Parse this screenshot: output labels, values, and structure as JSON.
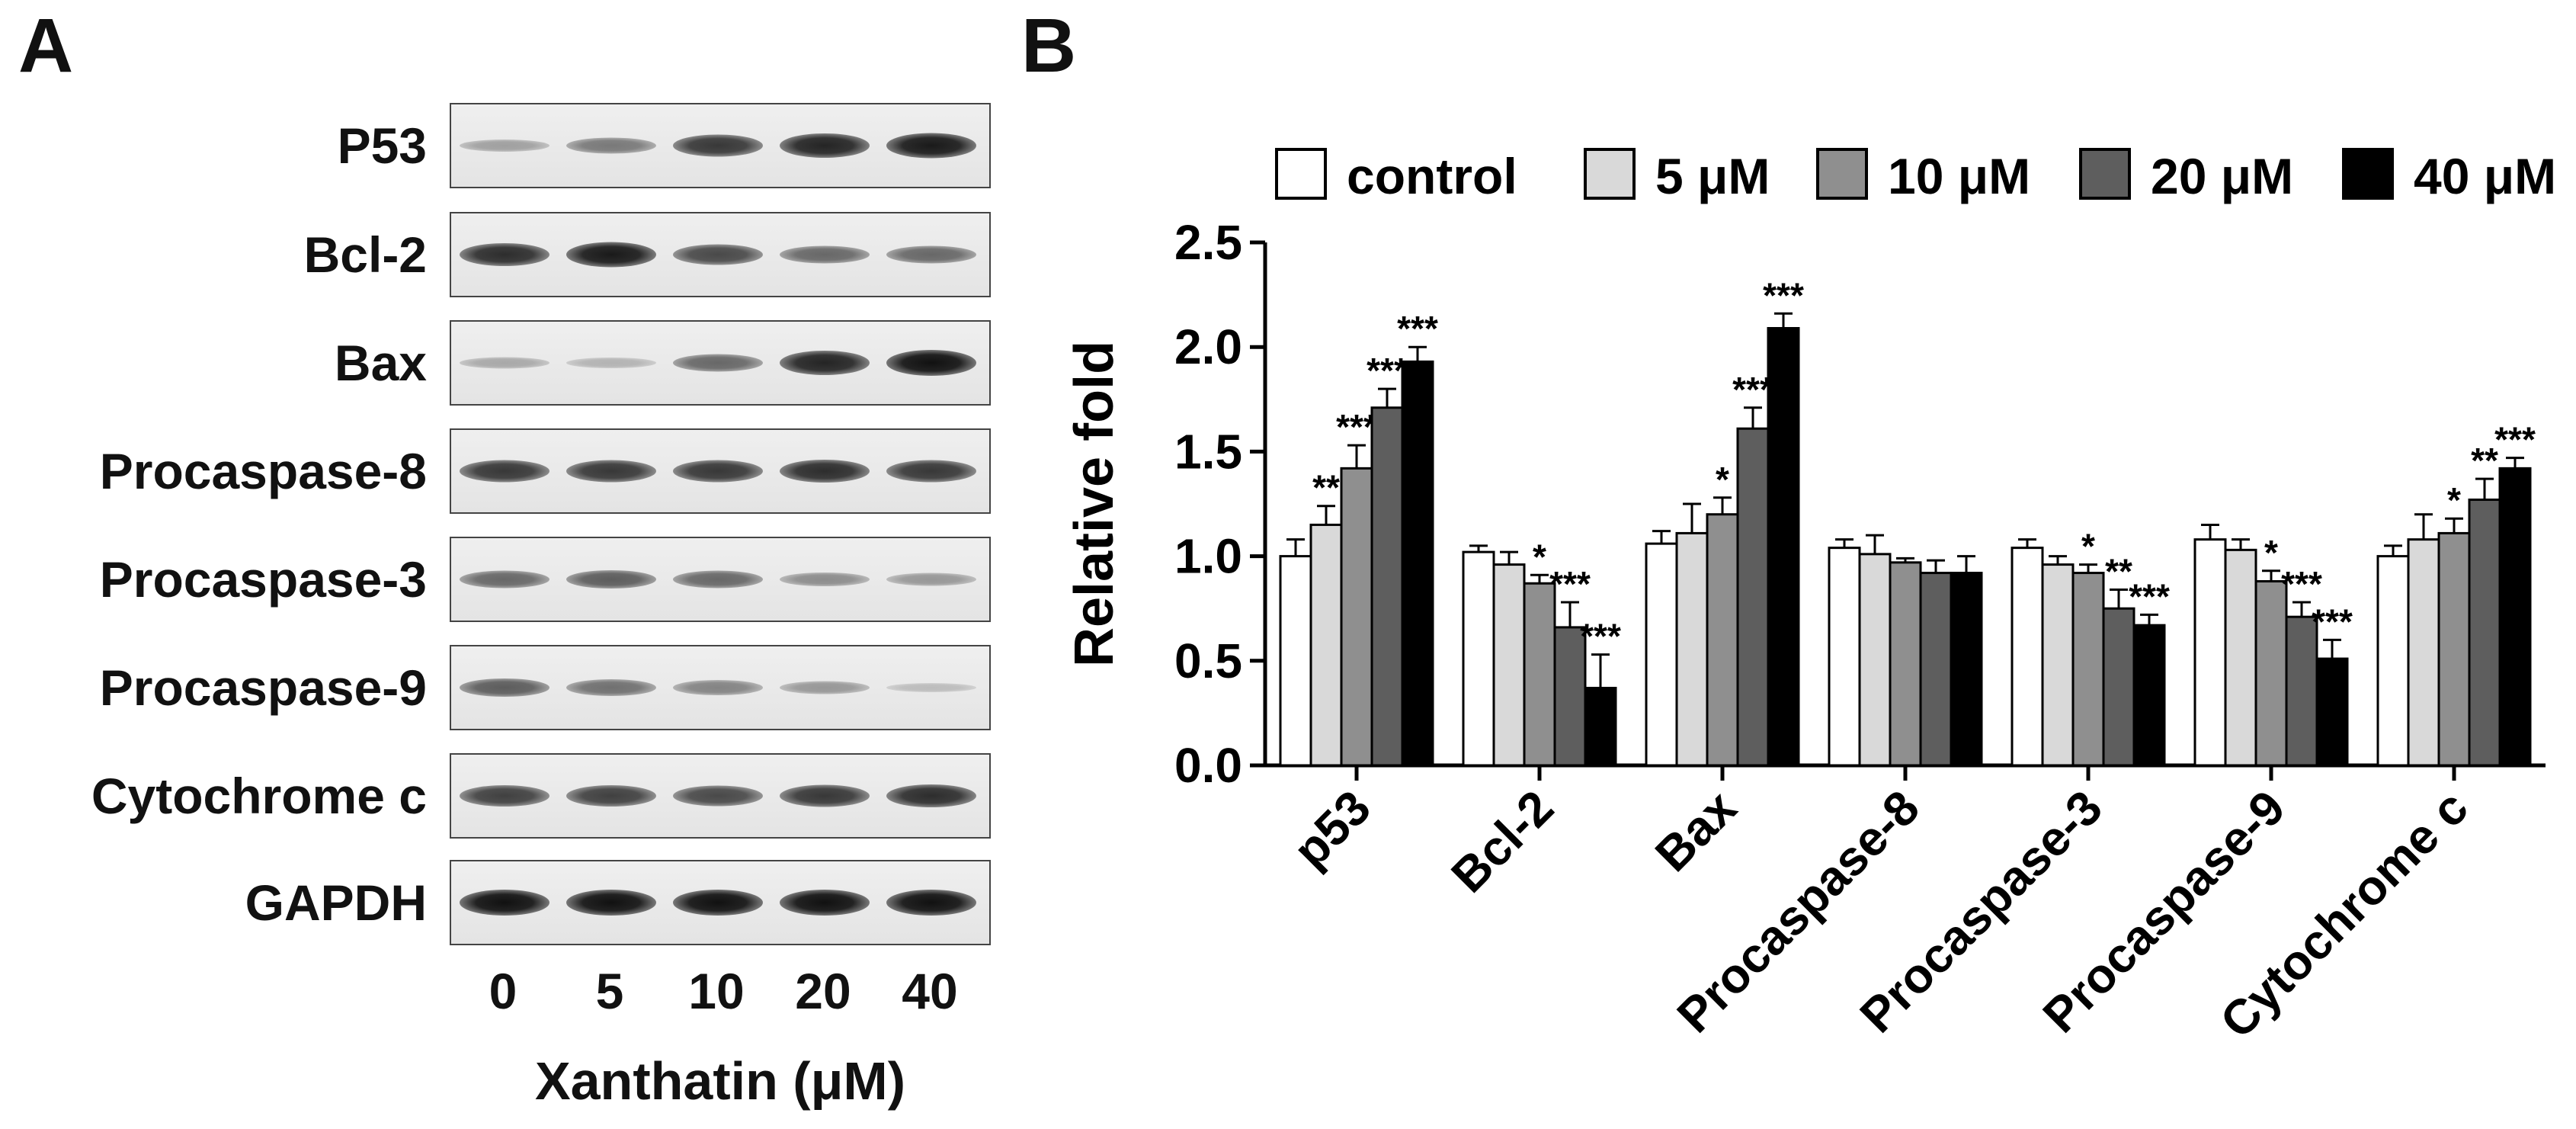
{
  "panels": {
    "a": "A",
    "b": "B"
  },
  "blot": {
    "proteins": [
      {
        "label": "P53",
        "intensity": [
          0.25,
          0.45,
          0.8,
          0.9,
          0.95
        ]
      },
      {
        "label": "Bcl-2",
        "intensity": [
          0.85,
          0.95,
          0.7,
          0.55,
          0.55
        ]
      },
      {
        "label": "Bax",
        "intensity": [
          0.2,
          0.15,
          0.55,
          0.9,
          1.0
        ]
      },
      {
        "label": "Procaspase-8",
        "intensity": [
          0.8,
          0.8,
          0.8,
          0.85,
          0.8
        ]
      },
      {
        "label": "Procaspase-3",
        "intensity": [
          0.55,
          0.6,
          0.55,
          0.35,
          0.3
        ]
      },
      {
        "label": "Procaspase-9",
        "intensity": [
          0.6,
          0.5,
          0.4,
          0.3,
          0.1
        ]
      },
      {
        "label": "Cytochrome c",
        "intensity": [
          0.75,
          0.75,
          0.7,
          0.8,
          0.85
        ]
      },
      {
        "label": "GAPDH",
        "intensity": [
          1.0,
          1.0,
          1.0,
          1.0,
          1.0
        ]
      }
    ],
    "lanes": [
      "0",
      "5",
      "10",
      "20",
      "40"
    ],
    "xlabel": "Xanthatin (μM)"
  },
  "chart_data": {
    "type": "bar",
    "ylabel": "Relative fold",
    "xlabel": "",
    "ylim": [
      0,
      2.5
    ],
    "yticks": [
      "0.0",
      "0.5",
      "1.0",
      "1.5",
      "2.0",
      "2.5"
    ],
    "legend_position": "top",
    "categories": [
      "p53",
      "Bcl-2",
      "Bax",
      "Procaspase-8",
      "Procaspase-3",
      "Procaspase-9",
      "Cytochrome c"
    ],
    "series": [
      {
        "name": "control",
        "color": "#ffffff",
        "values": [
          1.0,
          1.02,
          1.06,
          1.04,
          1.04,
          1.08,
          1.0
        ],
        "errors": [
          0.08,
          0.03,
          0.06,
          0.04,
          0.04,
          0.07,
          0.05
        ],
        "sig": [
          "",
          "",
          "",
          "",
          "",
          "",
          ""
        ]
      },
      {
        "name": "5 μM",
        "color": "#d9d9d9",
        "values": [
          1.15,
          0.96,
          1.11,
          1.01,
          0.96,
          1.03,
          1.08
        ],
        "errors": [
          0.09,
          0.06,
          0.14,
          0.09,
          0.04,
          0.05,
          0.12
        ],
        "sig": [
          "**",
          "",
          "",
          "",
          "",
          "",
          ""
        ]
      },
      {
        "name": "10 μM",
        "color": "#8f8f8f",
        "values": [
          1.42,
          0.87,
          1.2,
          0.97,
          0.92,
          0.88,
          1.11
        ],
        "errors": [
          0.11,
          0.04,
          0.08,
          0.02,
          0.04,
          0.05,
          0.07
        ],
        "sig": [
          "***",
          "*",
          "*",
          "",
          "*",
          "*",
          "*"
        ]
      },
      {
        "name": "20 μM",
        "color": "#5e5e5e",
        "values": [
          1.71,
          0.66,
          1.61,
          0.92,
          0.75,
          0.71,
          1.27
        ],
        "errors": [
          0.09,
          0.12,
          0.1,
          0.06,
          0.09,
          0.07,
          0.1
        ],
        "sig": [
          "***",
          "***",
          "***",
          "",
          "**",
          "***",
          "**"
        ]
      },
      {
        "name": "40 μM",
        "color": "#000000",
        "values": [
          1.93,
          0.37,
          2.09,
          0.92,
          0.67,
          0.51,
          1.42
        ],
        "errors": [
          0.07,
          0.16,
          0.07,
          0.08,
          0.05,
          0.09,
          0.05
        ],
        "sig": [
          "***",
          "***",
          "***",
          "",
          "***",
          "***",
          "***"
        ]
      }
    ]
  }
}
